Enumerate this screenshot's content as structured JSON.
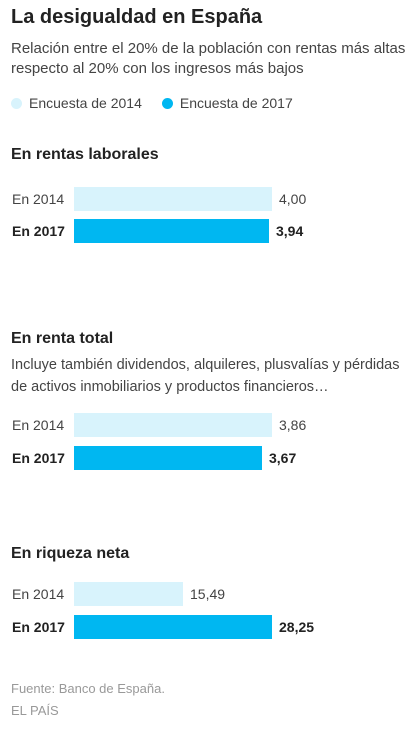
{
  "title": "La desigualdad en España",
  "subtitle": "Relación entre el 20% de la población con rentas más altas respecto al 20% con los ingresos más bajos",
  "legend": [
    {
      "label": "Encuesta de 2014",
      "color": "#d8f3fc"
    },
    {
      "label": "Encuesta de 2017",
      "color": "#00b7f1"
    }
  ],
  "chart_data": [
    {
      "type": "bar",
      "orientation": "horizontal",
      "title": "En rentas laborales",
      "categories": [
        "En 2014",
        "En 2017"
      ],
      "values": [
        4.0,
        3.94
      ],
      "value_labels": [
        "4,00",
        "3,94"
      ],
      "colors": [
        "#d8f3fc",
        "#00b7f1"
      ]
    },
    {
      "type": "bar",
      "orientation": "horizontal",
      "title": "En renta total",
      "note": "Incluye también dividendos, alquileres, plusvalías y pérdidas de activos inmobiliarios y productos financieros…",
      "categories": [
        "En 2014",
        "En 2017"
      ],
      "values": [
        3.86,
        3.67
      ],
      "value_labels": [
        "3,86",
        "3,67"
      ],
      "colors": [
        "#d8f3fc",
        "#00b7f1"
      ]
    },
    {
      "type": "bar",
      "orientation": "horizontal",
      "title": "En riqueza neta",
      "categories": [
        "En 2014",
        "En 2017"
      ],
      "values": [
        15.49,
        28.25
      ],
      "value_labels": [
        "15,49",
        "28,25"
      ],
      "colors": [
        "#d8f3fc",
        "#00b7f1"
      ]
    }
  ],
  "source": "Fuente: Banco de España.",
  "credit": "EL PAÍS"
}
